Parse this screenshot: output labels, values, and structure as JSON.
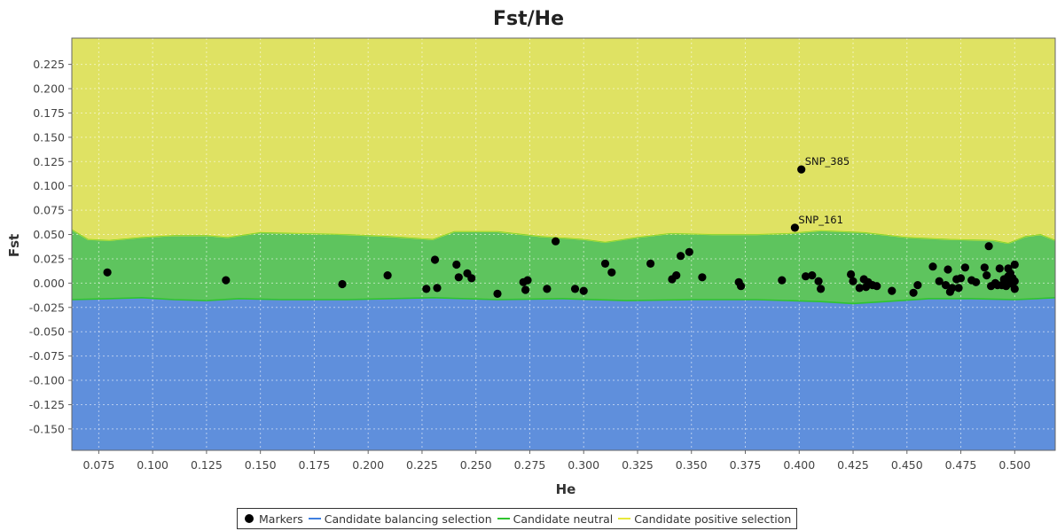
{
  "chart_data": {
    "type": "area",
    "title": "Fst/He",
    "xlabel": "He",
    "ylabel": "Fst",
    "xlim": [
      0.0625,
      0.5188
    ],
    "ylim": [
      -0.172,
      0.252
    ],
    "xticks": [
      "0.075",
      "0.100",
      "0.125",
      "0.150",
      "0.175",
      "0.200",
      "0.225",
      "0.250",
      "0.275",
      "0.300",
      "0.325",
      "0.350",
      "0.375",
      "0.400",
      "0.425",
      "0.450",
      "0.475",
      "0.500"
    ],
    "yticks": [
      "0.225",
      "0.200",
      "0.175",
      "0.150",
      "0.125",
      "0.100",
      "0.075",
      "0.050",
      "0.025",
      "0.000",
      "-0.025",
      "-0.050",
      "-0.075",
      "-0.100",
      "-0.125",
      "-0.150"
    ],
    "grid": true,
    "legend_position": "bottom",
    "colors": {
      "positive_fill": "#dfe263",
      "positive_line": "#e8e83a",
      "neutral_fill": "#5ec45e",
      "neutral_line": "#2fc42f",
      "balancing_fill": "#5f8fdc",
      "balancing_line": "#3f7fe0",
      "marker": "#000000"
    },
    "regions": {
      "upper_boundary": {
        "x": [
          0.0625,
          0.07,
          0.08,
          0.095,
          0.11,
          0.125,
          0.135,
          0.15,
          0.17,
          0.19,
          0.21,
          0.23,
          0.24,
          0.26,
          0.28,
          0.3,
          0.31,
          0.325,
          0.34,
          0.36,
          0.38,
          0.395,
          0.41,
          0.43,
          0.45,
          0.47,
          0.49,
          0.497,
          0.505,
          0.512,
          0.5188
        ],
        "y": [
          0.055,
          0.045,
          0.044,
          0.047,
          0.049,
          0.049,
          0.047,
          0.052,
          0.051,
          0.05,
          0.048,
          0.045,
          0.053,
          0.053,
          0.048,
          0.045,
          0.042,
          0.047,
          0.051,
          0.05,
          0.05,
          0.051,
          0.054,
          0.052,
          0.047,
          0.045,
          0.044,
          0.041,
          0.048,
          0.05,
          0.044
        ]
      },
      "lower_boundary": {
        "x": [
          0.0625,
          0.08,
          0.095,
          0.11,
          0.125,
          0.14,
          0.16,
          0.19,
          0.21,
          0.23,
          0.26,
          0.29,
          0.32,
          0.35,
          0.38,
          0.41,
          0.425,
          0.44,
          0.46,
          0.48,
          0.5,
          0.51,
          0.5188
        ],
        "y": [
          -0.017,
          -0.016,
          -0.015,
          -0.017,
          -0.018,
          -0.016,
          -0.017,
          -0.017,
          -0.016,
          -0.015,
          -0.017,
          -0.016,
          -0.018,
          -0.017,
          -0.017,
          -0.019,
          -0.021,
          -0.019,
          -0.016,
          -0.016,
          -0.017,
          -0.016,
          -0.015
        ]
      }
    },
    "series": [
      {
        "name": "Markers",
        "points": [
          [
            0.079,
            0.011
          ],
          [
            0.134,
            0.003
          ],
          [
            0.188,
            -0.001
          ],
          [
            0.209,
            0.008
          ],
          [
            0.227,
            -0.006
          ],
          [
            0.231,
            0.024
          ],
          [
            0.232,
            -0.005
          ],
          [
            0.241,
            0.019
          ],
          [
            0.242,
            0.006
          ],
          [
            0.246,
            0.01
          ],
          [
            0.248,
            0.005
          ],
          [
            0.26,
            -0.011
          ],
          [
            0.272,
            0.001
          ],
          [
            0.273,
            -0.007
          ],
          [
            0.274,
            0.003
          ],
          [
            0.283,
            -0.006
          ],
          [
            0.287,
            0.043
          ],
          [
            0.296,
            -0.006
          ],
          [
            0.3,
            -0.008
          ],
          [
            0.31,
            0.02
          ],
          [
            0.313,
            0.011
          ],
          [
            0.331,
            0.02
          ],
          [
            0.341,
            0.004
          ],
          [
            0.343,
            0.008
          ],
          [
            0.345,
            0.028
          ],
          [
            0.349,
            0.032
          ],
          [
            0.355,
            0.006
          ],
          [
            0.372,
            0.001
          ],
          [
            0.373,
            -0.003
          ],
          [
            0.392,
            0.003
          ],
          [
            0.398,
            0.057
          ],
          [
            0.401,
            0.117
          ],
          [
            0.403,
            0.007
          ],
          [
            0.406,
            0.008
          ],
          [
            0.409,
            0.002
          ],
          [
            0.41,
            -0.006
          ],
          [
            0.424,
            0.009
          ],
          [
            0.425,
            0.002
          ],
          [
            0.428,
            -0.005
          ],
          [
            0.43,
            0.004
          ],
          [
            0.431,
            -0.004
          ],
          [
            0.432,
            0.001
          ],
          [
            0.434,
            -0.002
          ],
          [
            0.436,
            -0.003
          ],
          [
            0.443,
            -0.008
          ],
          [
            0.453,
            -0.01
          ],
          [
            0.455,
            -0.002
          ],
          [
            0.462,
            0.017
          ],
          [
            0.465,
            0.002
          ],
          [
            0.468,
            -0.002
          ],
          [
            0.469,
            0.014
          ],
          [
            0.47,
            -0.009
          ],
          [
            0.471,
            -0.005
          ],
          [
            0.473,
            0.004
          ],
          [
            0.474,
            -0.005
          ],
          [
            0.475,
            0.005
          ],
          [
            0.477,
            0.016
          ],
          [
            0.48,
            0.003
          ],
          [
            0.482,
            0.001
          ],
          [
            0.486,
            0.016
          ],
          [
            0.487,
            0.008
          ],
          [
            0.488,
            0.038
          ],
          [
            0.489,
            -0.003
          ],
          [
            0.491,
            0.0
          ],
          [
            0.492,
            -0.002
          ],
          [
            0.493,
            0.015
          ],
          [
            0.494,
            -0.002
          ],
          [
            0.495,
            0.004
          ],
          [
            0.496,
            -0.003
          ],
          [
            0.497,
            0.015
          ],
          [
            0.497,
            0.007
          ],
          [
            0.498,
            0.003
          ],
          [
            0.498,
            0.01
          ],
          [
            0.499,
            -0.001
          ],
          [
            0.499,
            0.005
          ],
          [
            0.5,
            0.019
          ],
          [
            0.5,
            -0.006
          ],
          [
            0.5,
            0.002
          ]
        ]
      }
    ],
    "annotations": [
      {
        "text": "SNP_385",
        "x": 0.401,
        "y": 0.117
      },
      {
        "text": "SNP_161",
        "x": 0.398,
        "y": 0.057
      }
    ],
    "legend": [
      {
        "label": "Markers",
        "kind": "dot"
      },
      {
        "label": "Candidate balancing selection",
        "kind": "line",
        "color": "#3f7fe0"
      },
      {
        "label": "Candidate neutral",
        "kind": "line",
        "color": "#2fc42f"
      },
      {
        "label": "Candidate positive selection",
        "kind": "line",
        "color": "#e8e83a"
      }
    ]
  }
}
